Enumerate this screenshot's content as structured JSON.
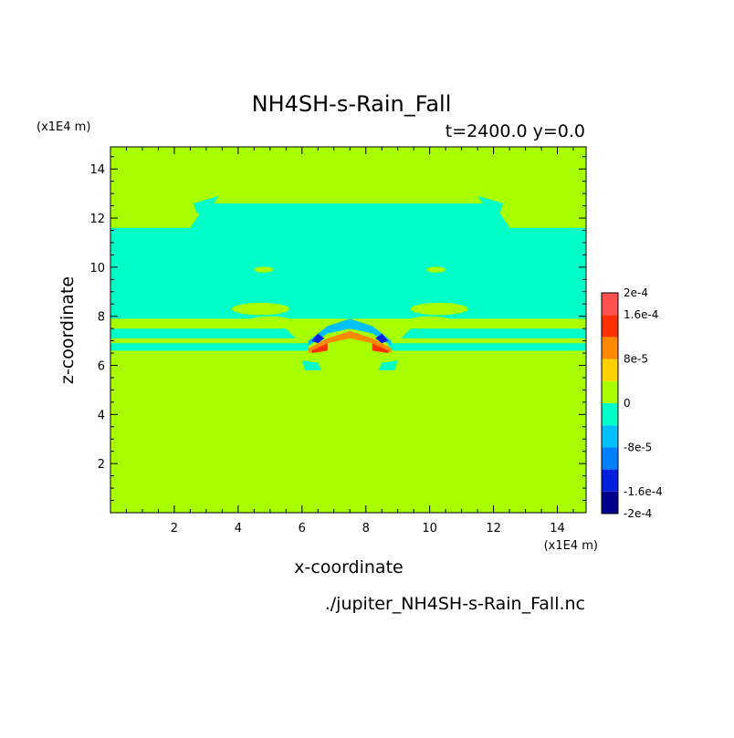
{
  "chart_data": {
    "type": "heatmap",
    "title": "NH4SH-s-Rain_Fall",
    "subtitle": "t=2400.0 y=0.0",
    "xlabel": "x-coordinate",
    "ylabel": "z-coordinate",
    "x_unit": "(x1E4 m)",
    "y_unit": "(x1E4 m)",
    "xlim": [
      0,
      14.9
    ],
    "ylim": [
      0,
      14.9
    ],
    "x_ticks": [
      2,
      4,
      6,
      8,
      10,
      12,
      14
    ],
    "y_ticks": [
      2,
      4,
      6,
      8,
      10,
      12,
      14
    ],
    "footer": "./jupiter_NH4SH-s-Rain_Fall.nc",
    "colorbar": {
      "levels": [
        -0.0002,
        -0.00016,
        -0.00012,
        -8e-05,
        -4e-05,
        0,
        4e-05,
        8e-05,
        0.00012,
        0.00016,
        0.0002
      ],
      "colors": [
        "#00008c",
        "#0020e0",
        "#0080ff",
        "#00c0ff",
        "#00ffc8",
        "#a8ff00",
        "#ffd200",
        "#ff8a00",
        "#ff3000",
        "#ff5050"
      ],
      "tick_labels": [
        {
          "value": 0.0002,
          "label": "2e-4"
        },
        {
          "value": 0.00016,
          "label": "1.6e-4"
        },
        {
          "value": 8e-05,
          "label": "8e-5"
        },
        {
          "value": 0,
          "label": "0"
        },
        {
          "value": -8e-05,
          "label": "-8e-5"
        },
        {
          "value": -0.00016,
          "label": "-1.6e-4"
        },
        {
          "value": -0.0002,
          "label": "-2e-4"
        }
      ]
    },
    "background_value": 1e-05,
    "regions": [
      {
        "name": "cloud-band",
        "value": -2e-05,
        "points": [
          [
            0,
            11.6
          ],
          [
            2.5,
            11.6
          ],
          [
            3,
            12.6
          ],
          [
            12,
            12.6
          ],
          [
            12.5,
            11.6
          ],
          [
            14.9,
            11.6
          ],
          [
            14.9,
            7.9
          ],
          [
            0,
            7.9
          ]
        ]
      },
      {
        "name": "upper-left-patch",
        "value": -2e-05,
        "points": [
          [
            2.6,
            12.6
          ],
          [
            3.4,
            12.9
          ],
          [
            3.0,
            12.2
          ],
          [
            2.7,
            12.2
          ]
        ]
      },
      {
        "name": "upper-right-patch",
        "value": -2e-05,
        "points": [
          [
            12.3,
            12.6
          ],
          [
            11.5,
            12.9
          ],
          [
            11.9,
            12.2
          ],
          [
            12.2,
            12.2
          ]
        ]
      },
      {
        "name": "band-lower-left",
        "value": -2e-05,
        "points": [
          [
            0,
            7.5
          ],
          [
            5.5,
            7.5
          ],
          [
            5.8,
            7.1
          ],
          [
            0,
            7.1
          ]
        ]
      },
      {
        "name": "band-lower-left-2",
        "value": -2e-05,
        "points": [
          [
            0,
            6.9
          ],
          [
            6.2,
            6.9
          ],
          [
            6.2,
            6.6
          ],
          [
            0,
            6.6
          ]
        ]
      },
      {
        "name": "band-lower-right",
        "value": -2e-05,
        "points": [
          [
            14.9,
            7.5
          ],
          [
            9.4,
            7.5
          ],
          [
            9.1,
            7.1
          ],
          [
            14.9,
            7.1
          ]
        ]
      },
      {
        "name": "band-lower-right-2",
        "value": -2e-05,
        "points": [
          [
            14.9,
            6.9
          ],
          [
            8.7,
            6.9
          ],
          [
            8.7,
            6.6
          ],
          [
            14.9,
            6.6
          ]
        ]
      },
      {
        "name": "arch-cool",
        "value": -6e-05,
        "points": [
          [
            6.2,
            7.0
          ],
          [
            6.8,
            7.6
          ],
          [
            7.5,
            7.9
          ],
          [
            8.2,
            7.6
          ],
          [
            8.8,
            7.0
          ],
          [
            8.8,
            6.8
          ],
          [
            8.2,
            7.3
          ],
          [
            7.5,
            7.5
          ],
          [
            6.8,
            7.3
          ],
          [
            6.2,
            6.8
          ]
        ]
      },
      {
        "name": "arch-core-left",
        "value": -0.00015,
        "points": [
          [
            6.3,
            7.0
          ],
          [
            6.5,
            7.3
          ],
          [
            6.7,
            7.1
          ],
          [
            6.5,
            6.9
          ]
        ]
      },
      {
        "name": "arch-core-right",
        "value": -0.00015,
        "points": [
          [
            8.7,
            7.0
          ],
          [
            8.5,
            7.3
          ],
          [
            8.3,
            7.1
          ],
          [
            8.5,
            6.9
          ]
        ]
      },
      {
        "name": "arch-warm",
        "value": 0.0001,
        "points": [
          [
            6.2,
            6.7
          ],
          [
            6.8,
            7.1
          ],
          [
            7.5,
            7.4
          ],
          [
            8.2,
            7.1
          ],
          [
            8.8,
            6.7
          ],
          [
            8.8,
            6.5
          ],
          [
            8.2,
            6.9
          ],
          [
            7.5,
            7.1
          ],
          [
            6.8,
            6.9
          ],
          [
            6.2,
            6.5
          ]
        ]
      },
      {
        "name": "arch-hot-left",
        "value": 0.00014,
        "points": [
          [
            6.3,
            6.6
          ],
          [
            6.8,
            6.9
          ],
          [
            6.8,
            6.6
          ],
          [
            6.3,
            6.5
          ]
        ]
      },
      {
        "name": "arch-hot-right",
        "value": 0.00014,
        "points": [
          [
            8.7,
            6.6
          ],
          [
            8.2,
            6.9
          ],
          [
            8.2,
            6.6
          ],
          [
            8.7,
            6.5
          ]
        ]
      },
      {
        "name": "blob-left",
        "value": -2e-05,
        "points": [
          [
            6.0,
            6.2
          ],
          [
            6.5,
            6.1
          ],
          [
            6.6,
            5.8
          ],
          [
            6.1,
            5.8
          ]
        ]
      },
      {
        "name": "blob-right",
        "value": -2e-05,
        "points": [
          [
            9.0,
            6.2
          ],
          [
            8.5,
            6.1
          ],
          [
            8.4,
            5.8
          ],
          [
            8.9,
            5.8
          ]
        ]
      }
    ],
    "ellipses": [
      {
        "name": "green-eye-left",
        "value": 1e-05,
        "cx": 4.8,
        "cy": 9.9,
        "rx": 0.3,
        "ry": 0.12
      },
      {
        "name": "green-eye-right",
        "value": 1e-05,
        "cx": 10.2,
        "cy": 9.9,
        "rx": 0.3,
        "ry": 0.12
      },
      {
        "name": "green-lobe-left",
        "value": 1e-05,
        "cx": 4.7,
        "cy": 8.3,
        "rx": 0.9,
        "ry": 0.25
      },
      {
        "name": "green-lobe-right",
        "value": 1e-05,
        "cx": 10.3,
        "cy": 8.3,
        "rx": 0.9,
        "ry": 0.25
      },
      {
        "name": "green-lobe-left-2",
        "value": 1e-05,
        "cx": 5.0,
        "cy": 7.8,
        "rx": 0.7,
        "ry": 0.2
      },
      {
        "name": "green-lobe-right-2",
        "value": 1e-05,
        "cx": 10.0,
        "cy": 7.8,
        "rx": 0.7,
        "ry": 0.2
      }
    ]
  }
}
